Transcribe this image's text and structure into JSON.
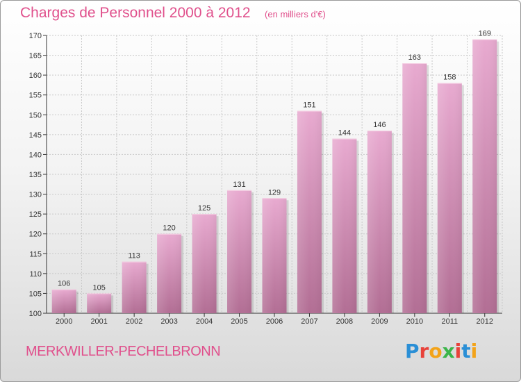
{
  "header": {
    "title": "Charges de Personnel 2000 à 2012",
    "unit": "(en milliers d'€)"
  },
  "footer": {
    "commune": "MERKWILLER-PECHELBRONN",
    "logo_text": "Proxiti",
    "logo_colors": [
      "#2a8fd6",
      "#e8423a",
      "#f3a319",
      "#3bb54a",
      "#e8423a",
      "#2a8fd6",
      "#f3a319"
    ]
  },
  "chart_data": {
    "type": "bar",
    "title": "Charges de Personnel 2000 à 2012",
    "subtitle": "(en milliers d'€)",
    "categories": [
      "2000",
      "2001",
      "2002",
      "2003",
      "2004",
      "2005",
      "2006",
      "2007",
      "2008",
      "2009",
      "2010",
      "2011",
      "2012"
    ],
    "values": [
      106,
      105,
      113,
      120,
      125,
      131,
      129,
      151,
      144,
      146,
      163,
      158,
      169
    ],
    "ylim": [
      100,
      170
    ],
    "yticks": [
      100,
      105,
      110,
      115,
      120,
      125,
      130,
      135,
      140,
      145,
      150,
      155,
      160,
      165,
      170
    ],
    "grid": true,
    "bar_color": "#d98fb8",
    "bar_color_light": "#e6a8cc"
  }
}
